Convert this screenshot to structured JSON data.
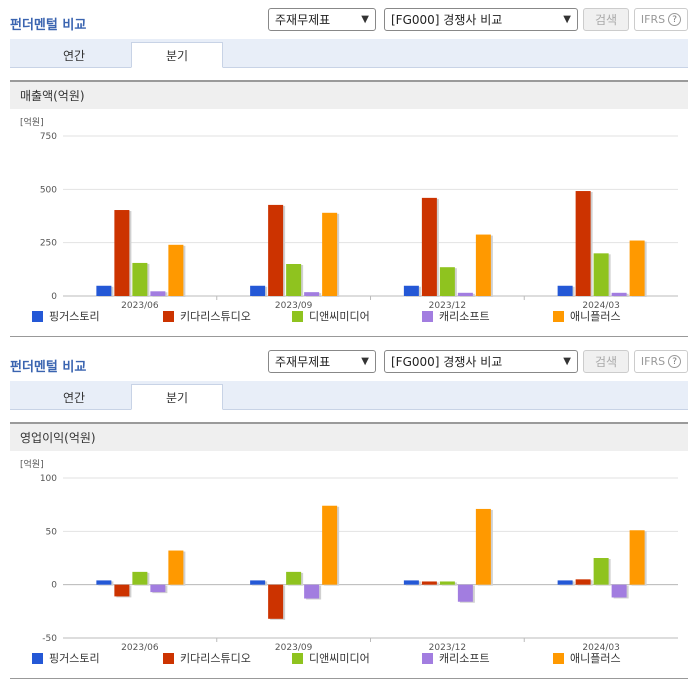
{
  "header": {
    "title": "펀더멘털 비교",
    "select1": "주재무제표",
    "select2": "[FG000] 경쟁사 비교",
    "search_label": "검색",
    "ifrs_label": "IFRS",
    "help": "?"
  },
  "tabs": {
    "annual": "연간",
    "quarter": "분기"
  },
  "colors": [
    "#2458d6",
    "#cc3300",
    "#8fc31f",
    "#a27de0",
    "#ff9900"
  ],
  "charts": [
    {
      "section_title": "매출액(억원)",
      "chart_data": {
        "type": "bar",
        "unit": "[억원]",
        "categories": [
          "2023/06",
          "2023/09",
          "2023/12",
          "2024/03"
        ],
        "ylim": [
          0,
          750
        ],
        "yticks": [
          0,
          250,
          500,
          750
        ],
        "series": [
          {
            "name": "핑거스토리",
            "values": [
              48,
              48,
              48,
              48
            ]
          },
          {
            "name": "키다리스튜디오",
            "values": [
              403,
              427,
              460,
              492
            ]
          },
          {
            "name": "디앤씨미디어",
            "values": [
              155,
              150,
              135,
              200
            ]
          },
          {
            "name": "캐리소프트",
            "values": [
              22,
              18,
              15,
              15
            ]
          },
          {
            "name": "애니플러스",
            "values": [
              240,
              390,
              288,
              260
            ]
          }
        ]
      }
    },
    {
      "section_title": "영업이익(억원)",
      "chart_data": {
        "type": "bar",
        "unit": "[억원]",
        "categories": [
          "2023/06",
          "2023/09",
          "2023/12",
          "2024/03"
        ],
        "ylim": [
          -50,
          100
        ],
        "yticks": [
          -50,
          0,
          50,
          100
        ],
        "series": [
          {
            "name": "핑거스토리",
            "values": [
              4,
              4,
              4,
              4
            ]
          },
          {
            "name": "키다리스튜디오",
            "values": [
              -11,
              -32,
              3,
              5
            ]
          },
          {
            "name": "디앤씨미디어",
            "values": [
              12,
              12,
              3,
              25
            ]
          },
          {
            "name": "캐리소프트",
            "values": [
              -7,
              -13,
              -16,
              -12
            ]
          },
          {
            "name": "애니플러스",
            "values": [
              32,
              74,
              71,
              51
            ]
          }
        ]
      }
    }
  ]
}
